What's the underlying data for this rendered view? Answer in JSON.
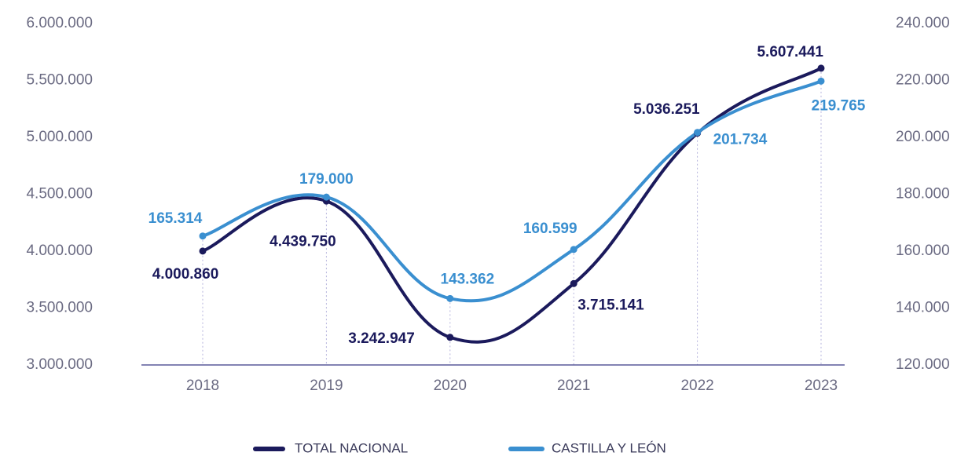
{
  "chart_data": {
    "type": "line",
    "categories": [
      "2018",
      "2019",
      "2020",
      "2021",
      "2022",
      "2023"
    ],
    "series": [
      {
        "name": "TOTAL NACIONAL",
        "color": "#1b1a5c",
        "axis": "y",
        "values": [
          4000860,
          4439750,
          3242947,
          3715141,
          5036251,
          5607441
        ],
        "value_labels": [
          "4.000.860",
          "4.439.750",
          "3.242.947",
          "3.715.141",
          "5.036.251",
          "5.607.441"
        ]
      },
      {
        "name": "CASTILLA Y LEÓN",
        "color": "#3a8fd0",
        "axis": "y2",
        "values": [
          165314,
          179000,
          143362,
          160599,
          201734,
          219765
        ],
        "value_labels": [
          "165.314",
          "179.000",
          "143.362",
          "160.599",
          "201.734",
          "219.765"
        ]
      }
    ],
    "ylim": [
      3000000,
      6000000
    ],
    "yticks": [
      {
        "value": 3000000,
        "label": "3.000.000"
      },
      {
        "value": 3500000,
        "label": "3.500.000"
      },
      {
        "value": 4000000,
        "label": "4.000.000"
      },
      {
        "value": 4500000,
        "label": "4.500.000"
      },
      {
        "value": 5000000,
        "label": "5.000.000"
      },
      {
        "value": 5500000,
        "label": "5.500.000"
      },
      {
        "value": 6000000,
        "label": "6.000.000"
      }
    ],
    "y2lim": [
      120000,
      240000
    ],
    "y2ticks": [
      {
        "value": 120000,
        "label": "120.000"
      },
      {
        "value": 140000,
        "label": "140.000"
      },
      {
        "value": 160000,
        "label": "160.000"
      },
      {
        "value": 180000,
        "label": "180.000"
      },
      {
        "value": 200000,
        "label": "200.000"
      },
      {
        "value": 220000,
        "label": "220.000"
      },
      {
        "value": 240000,
        "label": "240.000"
      }
    ],
    "legend": "bottom"
  }
}
